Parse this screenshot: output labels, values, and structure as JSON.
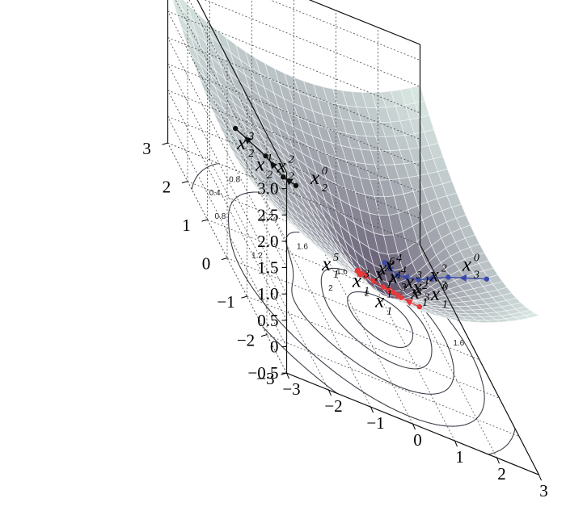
{
  "chart_data": {
    "type": "surface",
    "title": "",
    "xlabel": "",
    "ylabel": "",
    "zlabel": "",
    "xlim": [
      -3,
      3
    ],
    "ylim": [
      -3,
      3
    ],
    "zlim": [
      -0.5,
      3.0
    ],
    "x_ticks": [
      "−3",
      "−2",
      "−1",
      "0",
      "1",
      "2",
      "3"
    ],
    "y_ticks": [
      "−3",
      "−2",
      "−1",
      "0",
      "1",
      "2",
      "3"
    ],
    "z_ticks": [
      "−0.5",
      "0",
      "0.5",
      "1.0",
      "1.5",
      "2.0",
      "2.5",
      "3.0"
    ],
    "contour_levels": [
      "0.4",
      "0.8",
      "1.2",
      "1.6",
      "2"
    ],
    "grid": true,
    "colors": {
      "surface_high": "#d8e6e2",
      "surface_low": "#564a64",
      "contour": "#3a3f4a",
      "path1": "#e8383a",
      "path2": "#111111",
      "path3": "#3b4aa8"
    },
    "series": [
      {
        "key": "path1",
        "points": [
          {
            "x": 0.35,
            "y": -2.6
          },
          {
            "x": 0.1,
            "y": -2.2
          },
          {
            "x": 0.12,
            "y": -1.75
          },
          {
            "x": -0.02,
            "y": -1.55
          },
          {
            "x": -0.3,
            "y": -1.25
          },
          {
            "x": -0.35,
            "y": -0.95
          },
          {
            "x": -0.1,
            "y": -0.55
          },
          {
            "x": 0.0,
            "y": -0.2
          }
        ],
        "labels": [
          {
            "main": "x",
            "sup": "0",
            "sub": "1"
          },
          {
            "main": "x",
            "sup": "1",
            "sub": "1"
          },
          {
            "main": "x",
            "sup": "2",
            "sub": "1"
          },
          {
            "main": "x",
            "sup": "3",
            "sub": "1"
          },
          {
            "main": "x",
            "sup": "4",
            "sub": "1"
          },
          {
            "main": "x",
            "sup": "5",
            "sub": "1"
          },
          {
            "main": "x",
            "sup": "6",
            "sub": "1"
          },
          {
            "main": "x",
            "sup": "7",
            "sub": "1"
          }
        ]
      },
      {
        "key": "path2",
        "points": [
          {
            "x": -1.2,
            "y": 0.35
          },
          {
            "x": -1.55,
            "y": 0.25
          },
          {
            "x": -1.85,
            "y": 0.5
          },
          {
            "x": -2.45,
            "y": 0.75
          }
        ],
        "labels": [
          {
            "main": "x",
            "sup": "0",
            "sub": "2"
          },
          {
            "main": "x",
            "sup": "1",
            "sub": "2"
          },
          {
            "main": "x",
            "sup": "2",
            "sub": "2"
          },
          {
            "main": "x",
            "sup": "3",
            "sub": "2"
          }
        ]
      },
      {
        "key": "path3",
        "points": [
          {
            "x": 2.7,
            "y": -1.0
          },
          {
            "x": 2.0,
            "y": -0.55
          },
          {
            "x": 1.55,
            "y": 0.0
          },
          {
            "x": 1.2,
            "y": 0.35
          },
          {
            "x": 1.0,
            "y": 0.55
          }
        ],
        "labels": [
          {
            "main": "x",
            "sup": "0",
            "sub": "3"
          },
          {
            "main": "x",
            "sup": "1",
            "sub": "3"
          },
          {
            "main": "x",
            "sup": "2",
            "sub": "3"
          },
          {
            "main": "x",
            "sup": "3",
            "sub": "3"
          },
          {
            "main": "x",
            "sup": "4",
            "sub": "3"
          }
        ]
      }
    ]
  }
}
